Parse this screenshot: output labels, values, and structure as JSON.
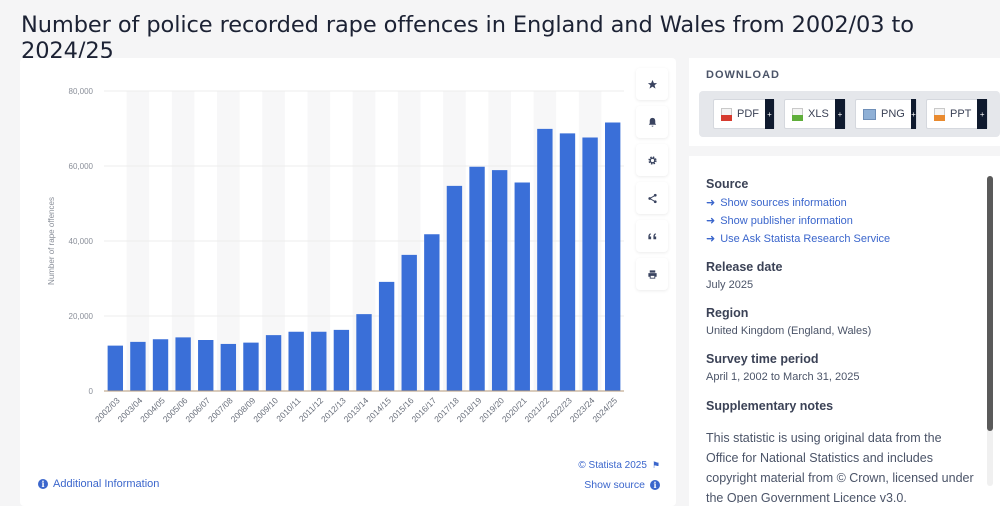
{
  "page": {
    "title": "Number of police recorded rape offences in England and Wales from 2002/03 to 2024/25"
  },
  "toolbar": {
    "buttons": [
      {
        "name": "favorite",
        "icon": "star-icon"
      },
      {
        "name": "notification",
        "icon": "bell-icon"
      },
      {
        "name": "settings",
        "icon": "gear-icon"
      },
      {
        "name": "share",
        "icon": "share-icon"
      },
      {
        "name": "cite",
        "icon": "quote-icon"
      },
      {
        "name": "print",
        "icon": "printer-icon"
      }
    ]
  },
  "footer": {
    "additional_info": "Additional Information",
    "copyright": "© Statista 2025",
    "show_source": "Show source"
  },
  "download": {
    "title": "DOWNLOAD",
    "buttons": [
      {
        "label": "PDF",
        "color": "#d63b2f",
        "plus": "+"
      },
      {
        "label": "XLS",
        "color": "#5fae3a",
        "plus": "+"
      },
      {
        "label": "PNG",
        "color": "#6f8fb8",
        "plus": "+"
      },
      {
        "label": "PPT",
        "color": "#e98a2e",
        "plus": "+"
      }
    ]
  },
  "info": {
    "source_title": "Source",
    "source_links": [
      "Show sources information",
      "Show publisher information",
      "Use Ask Statista Research Service"
    ],
    "release_date_title": "Release date",
    "release_date": "July 2025",
    "region_title": "Region",
    "region": "United Kingdom (England, Wales)",
    "survey_period_title": "Survey time period",
    "survey_period": "April 1, 2002 to March 31, 2025",
    "notes_title": "Supplementary notes",
    "notes_text": "This statistic is using original data from the Office for National Statistics and includes copyright material from © Crown, licensed under the Open Government Licence v3.0."
  },
  "chart_data": {
    "type": "bar",
    "title": "Number of police recorded rape offences in England and Wales from 2002/03 to 2024/25",
    "xlabel": "",
    "ylabel": "Number of rape offences",
    "ylim": [
      0,
      80000
    ],
    "yticks": [
      0,
      20000,
      40000,
      60000,
      80000
    ],
    "ytick_labels": [
      "0",
      "20,000",
      "40,000",
      "60,000",
      "80,000"
    ],
    "grid": true,
    "bar_color": "#3a6fd8",
    "categories": [
      "2002/03",
      "2003/04",
      "2004/05",
      "2005/06",
      "2006/07",
      "2007/08",
      "2008/09",
      "2009/10",
      "2010/11",
      "2011/12",
      "2012/13",
      "2013/14",
      "2014/15",
      "2015/16",
      "2016/17",
      "2017/18",
      "2018/19",
      "2019/20",
      "2020/21",
      "2021/22",
      "2022/23",
      "2023/24",
      "2024/25"
    ],
    "values": [
      12100,
      13100,
      13800,
      14300,
      13600,
      12550,
      12900,
      14900,
      15800,
      15800,
      16300,
      20500,
      29100,
      36300,
      41800,
      54700,
      59800,
      58900,
      55600,
      69900,
      68700,
      67600,
      71600
    ]
  }
}
